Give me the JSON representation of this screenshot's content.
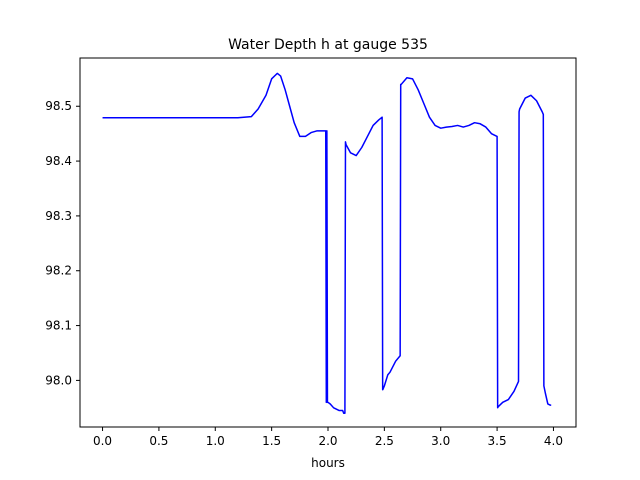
{
  "chart_data": {
    "type": "line",
    "title": "Water Depth h at gauge 535",
    "xlabel": "hours",
    "ylabel": "",
    "xlim": [
      -0.2,
      4.2
    ],
    "ylim": [
      97.915,
      98.588
    ],
    "xticks": [
      0.0,
      0.5,
      1.0,
      1.5,
      2.0,
      2.5,
      3.0,
      3.5,
      4.0
    ],
    "xtick_labels": [
      "0.0",
      "0.5",
      "1.0",
      "1.5",
      "2.0",
      "2.5",
      "3.0",
      "3.5",
      "4.0"
    ],
    "yticks": [
      98.0,
      98.1,
      98.2,
      98.3,
      98.4,
      98.5
    ],
    "ytick_labels": [
      "98.0",
      "98.1",
      "98.2",
      "98.3",
      "98.4",
      "98.5"
    ],
    "grid": false,
    "series": [
      {
        "color": "#0000ff",
        "x": [
          0.0,
          0.5,
          1.0,
          1.2,
          1.32,
          1.38,
          1.45,
          1.5,
          1.55,
          1.58,
          1.62,
          1.66,
          1.7,
          1.75,
          1.8,
          1.85,
          1.9,
          1.95,
          1.97,
          1.98,
          1.985,
          1.99,
          1.995,
          2.0,
          2.02,
          2.05,
          2.1,
          2.13,
          2.14,
          2.15,
          2.155,
          2.16,
          2.2,
          2.25,
          2.3,
          2.35,
          2.4,
          2.45,
          2.48,
          2.485,
          2.49,
          2.5,
          2.53,
          2.55,
          2.6,
          2.64,
          2.645,
          2.65,
          2.7,
          2.75,
          2.8,
          2.85,
          2.9,
          2.95,
          3.0,
          3.05,
          3.1,
          3.15,
          3.2,
          3.25,
          3.3,
          3.35,
          3.4,
          3.45,
          3.5,
          3.505,
          3.51,
          3.55,
          3.6,
          3.65,
          3.69,
          3.695,
          3.7,
          3.75,
          3.8,
          3.85,
          3.9,
          3.91,
          3.915,
          3.93,
          3.95,
          3.97,
          3.98
        ],
        "y": [
          98.479,
          98.479,
          98.479,
          98.479,
          98.481,
          98.495,
          98.52,
          98.55,
          98.56,
          98.555,
          98.53,
          98.5,
          98.47,
          98.445,
          98.445,
          98.452,
          98.455,
          98.455,
          98.455,
          98.455,
          97.96,
          98.455,
          97.96,
          97.96,
          97.957,
          97.95,
          97.945,
          97.945,
          97.94,
          97.94,
          98.435,
          98.43,
          98.415,
          98.41,
          98.425,
          98.445,
          98.465,
          98.475,
          98.48,
          97.983,
          97.985,
          97.99,
          98.01,
          98.015,
          98.035,
          98.045,
          98.54,
          98.54,
          98.552,
          98.55,
          98.53,
          98.505,
          98.48,
          98.465,
          98.46,
          98.462,
          98.463,
          98.465,
          98.462,
          98.465,
          98.47,
          98.468,
          98.462,
          98.45,
          98.445,
          97.95,
          97.952,
          97.96,
          97.965,
          97.98,
          97.998,
          98.49,
          98.495,
          98.515,
          98.52,
          98.51,
          98.49,
          98.485,
          97.99,
          97.975,
          97.957,
          97.955,
          97.955
        ]
      }
    ]
  }
}
